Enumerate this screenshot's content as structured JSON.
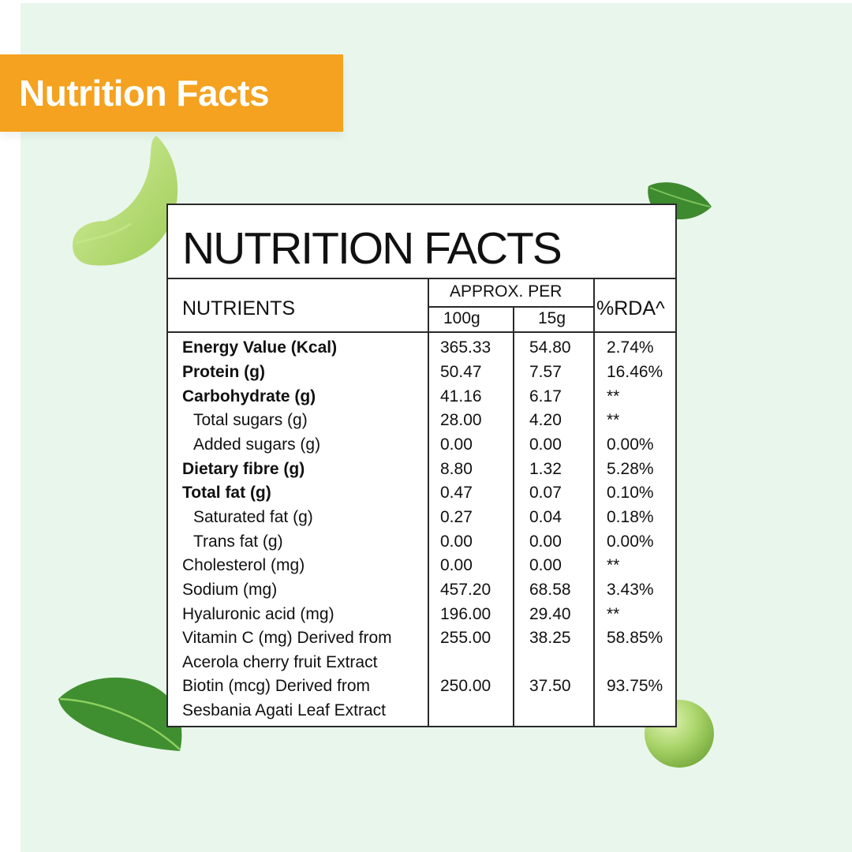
{
  "banner": {
    "title": "Nutrition Facts"
  },
  "card": {
    "title": "NUTRITION FACTS",
    "headers": {
      "nutrients": "NUTRIENTS",
      "approx_per": "APPROX. PER",
      "per_100g": "100g",
      "per_15g": "15g",
      "rda": "%RDA^"
    },
    "rows": [
      {
        "name": "Energy Value (Kcal)",
        "v100": "365.33",
        "v15": "54.80",
        "rda": "2.74%"
      },
      {
        "name": "Protein (g)",
        "v100": "50.47",
        "v15": "7.57",
        "rda": "16.46%"
      },
      {
        "name": "Carbohydrate (g)",
        "v100": "41.16",
        "v15": "6.17",
        "rda": "**"
      },
      {
        "name": "Total sugars (g)",
        "v100": "28.00",
        "v15": "4.20",
        "rda": "**"
      },
      {
        "name": "Added sugars (g)",
        "v100": "0.00",
        "v15": "0.00",
        "rda": "0.00%"
      },
      {
        "name": "Dietary fibre (g)",
        "v100": "8.80",
        "v15": "1.32",
        "rda": "5.28%"
      },
      {
        "name": "Total fat (g)",
        "v100": "0.47",
        "v15": "0.07",
        "rda": "0.10%"
      },
      {
        "name": "Saturated fat (g)",
        "v100": "0.27",
        "v15": "0.04",
        "rda": "0.18%"
      },
      {
        "name": "Trans fat (g)",
        "v100": "0.00",
        "v15": "0.00",
        "rda": "0.00%"
      },
      {
        "name": "Cholesterol (mg)",
        "v100": "0.00",
        "v15": "0.00",
        "rda": "**"
      },
      {
        "name": "Sodium (mg)",
        "v100": "457.20",
        "v15": "68.58",
        "rda": "3.43%"
      },
      {
        "name": "Hyaluronic acid (mg)",
        "v100": "196.00",
        "v15": "29.40",
        "rda": "**"
      },
      {
        "name": "Vitamin C (mg) Derived from",
        "name_cont": "Acerola cherry fruit Extract",
        "v100": "255.00",
        "v15": "38.25",
        "rda": "58.85%"
      },
      {
        "name": "Biotin (mcg) Derived from",
        "name_cont": "Sesbania Agati Leaf Extract",
        "v100": "250.00",
        "v15": "37.50",
        "rda": "93.75%"
      }
    ]
  },
  "colors": {
    "banner": "#f4a21f",
    "background": "#e9f6ec",
    "border": "#2a2a2a"
  },
  "decorations": [
    "fruit-slice-icon",
    "leaf-icon",
    "leaf-icon",
    "pea-icon"
  ]
}
